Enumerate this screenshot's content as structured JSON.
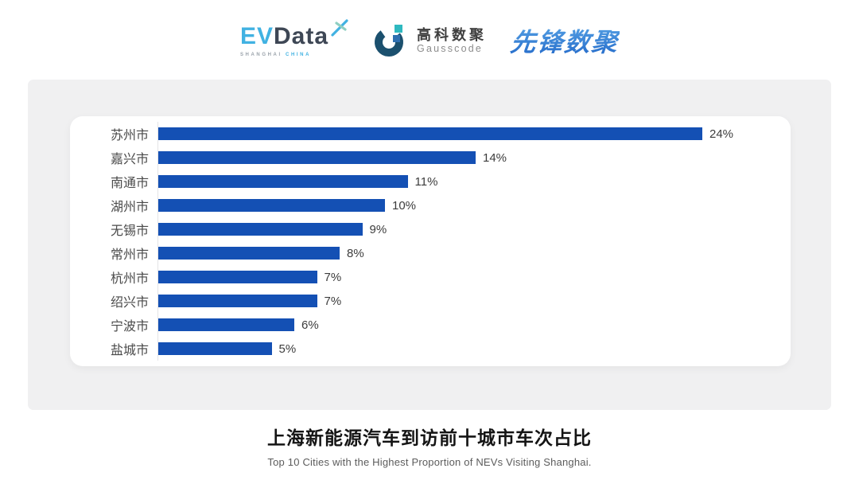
{
  "header": {
    "evdata": {
      "ev": "EV",
      "data": "Data",
      "sub_left": "SHANGHAI",
      "sub_right": "CHINA"
    },
    "gausscode": {
      "cn": "高科数聚",
      "en": "Gausscode"
    },
    "xianfeng": {
      "text": "先锋数聚"
    }
  },
  "chart_data": {
    "type": "bar",
    "orientation": "horizontal",
    "title": "上海新能源汽车到访前十城市车次占比",
    "subtitle": "Top 10 Cities with the Highest Proportion of  NEVs Visiting Shanghai.",
    "categories": [
      "苏州市",
      "嘉兴市",
      "南通市",
      "湖州市",
      "无锡市",
      "常州市",
      "杭州市",
      "绍兴市",
      "宁波市",
      "盐城市"
    ],
    "values": [
      24,
      14,
      11,
      10,
      9,
      8,
      7,
      7,
      6,
      5
    ],
    "value_suffix": "%",
    "xlim": [
      0,
      24
    ],
    "grid": false,
    "legend": "none",
    "bar_color": "#1450B4",
    "axis_line_color": "#E4E4E7"
  },
  "colors": {
    "page_bg": "#FFFFFF",
    "panel_bg": "#F0F0F1",
    "card_bg": "#FFFFFF",
    "bar_blue": "#1450B4",
    "evdata_blue": "#41B2E2",
    "evdata_dark": "#3E4755",
    "gauss_dark": "#1B506E",
    "gauss_teal": "#2FB9C0",
    "gauss_blue": "#2E6FB0",
    "xianfeng_blue": "#2F7CD6",
    "label_gray": "#4A4A4A",
    "value_gray": "#3C3C3C"
  }
}
